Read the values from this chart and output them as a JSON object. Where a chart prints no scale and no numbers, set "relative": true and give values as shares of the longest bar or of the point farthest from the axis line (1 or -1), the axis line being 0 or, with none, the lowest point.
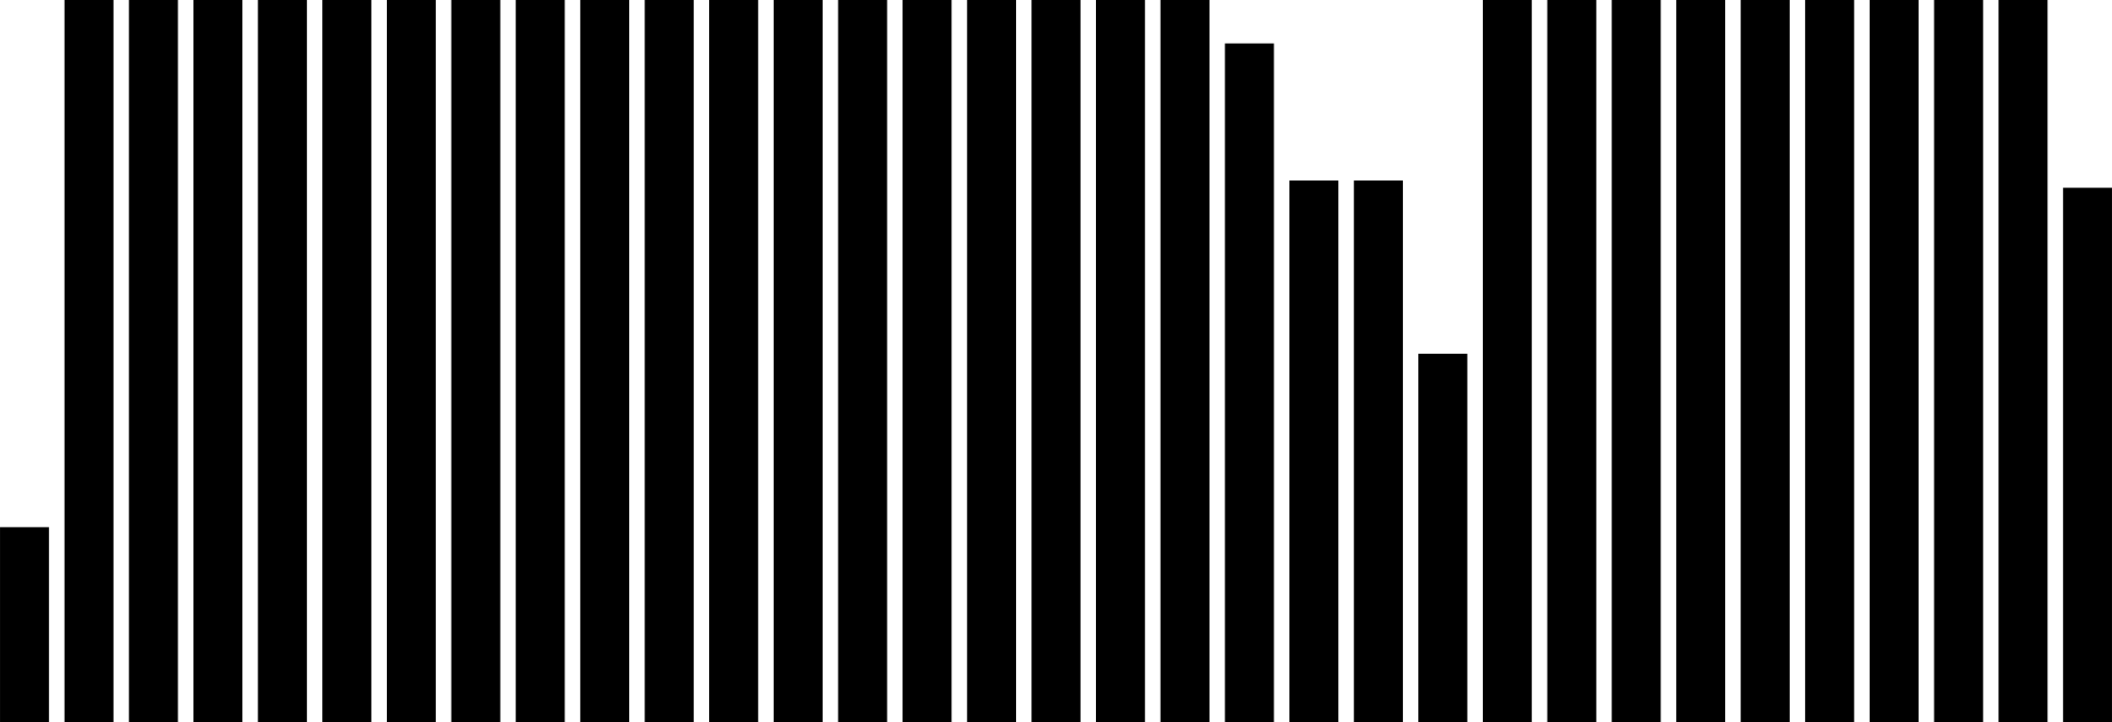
{
  "chart_data": {
    "type": "bar",
    "relative": true,
    "color": "#000000",
    "categories": [
      null,
      null,
      null,
      null,
      null,
      null,
      null,
      null,
      null,
      null,
      null,
      null,
      null,
      null,
      null,
      null,
      null,
      null,
      null,
      null,
      null,
      null,
      null,
      null,
      null,
      null,
      null,
      null,
      null,
      null,
      null,
      null,
      null
    ],
    "values": [
      0.27,
      1,
      1,
      1,
      1,
      1,
      1,
      1,
      1,
      1,
      1,
      1,
      1,
      1,
      1,
      1,
      1,
      1,
      1,
      0.94,
      0.75,
      0.75,
      0.51,
      1,
      1,
      1,
      1,
      1,
      1,
      1,
      1,
      1,
      0.74
    ]
  }
}
